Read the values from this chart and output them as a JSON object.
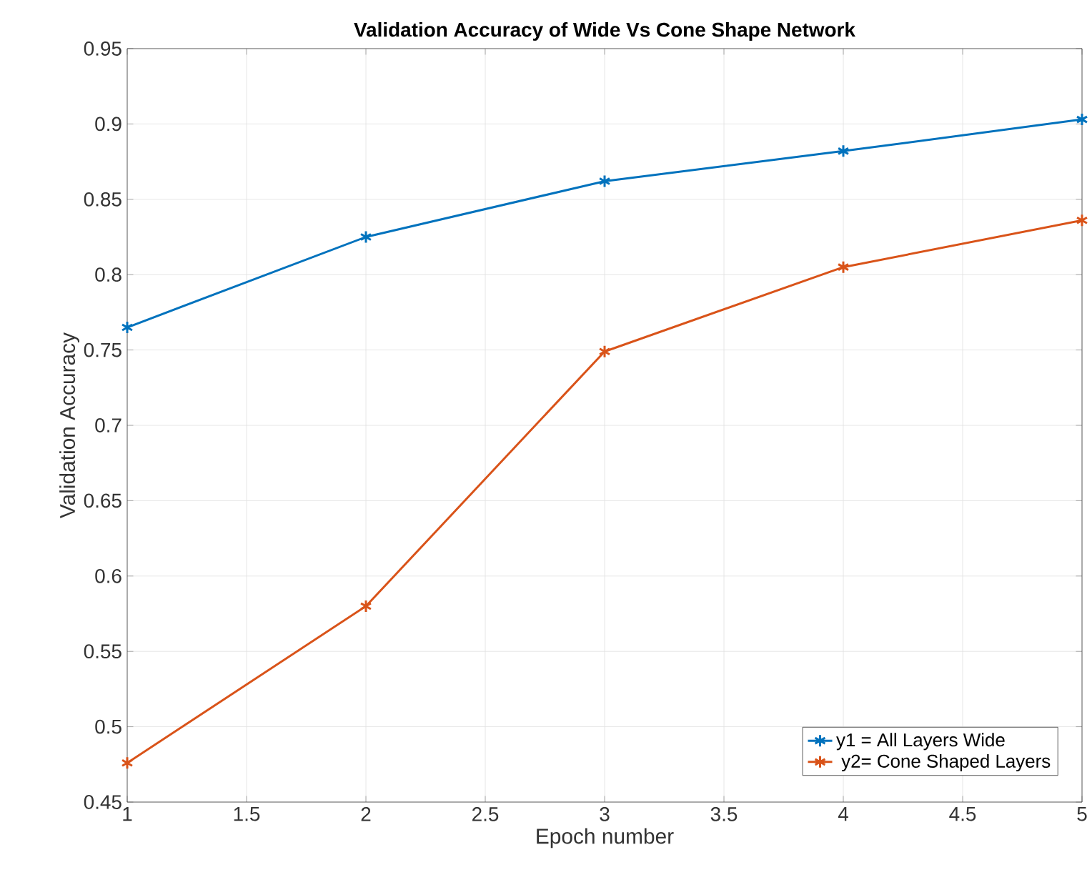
{
  "chart_data": {
    "type": "line",
    "title": "Validation Accuracy of Wide Vs Cone Shape Network",
    "xlabel": "Epoch number",
    "ylabel": "Validation Accuracy",
    "x": [
      1,
      2,
      3,
      4,
      5
    ],
    "series": [
      {
        "name": "y1 = All Layers Wide",
        "color": "#0072bd",
        "values": [
          0.765,
          0.825,
          0.862,
          0.882,
          0.903
        ]
      },
      {
        "name": " y2= Cone Shaped Layers",
        "color": "#d95319",
        "values": [
          0.476,
          0.58,
          0.749,
          0.805,
          0.836
        ]
      }
    ],
    "xlim": [
      1,
      5
    ],
    "xticks": [
      1,
      1.5,
      2,
      2.5,
      3,
      3.5,
      4,
      4.5,
      5
    ],
    "ylim": [
      0.45,
      0.95
    ],
    "yticks": [
      0.45,
      0.5,
      0.55,
      0.6,
      0.65,
      0.7,
      0.75,
      0.8,
      0.85,
      0.9,
      0.95
    ],
    "grid": true,
    "legend": "bottom right",
    "marker": "cross",
    "line_style": "solid"
  }
}
